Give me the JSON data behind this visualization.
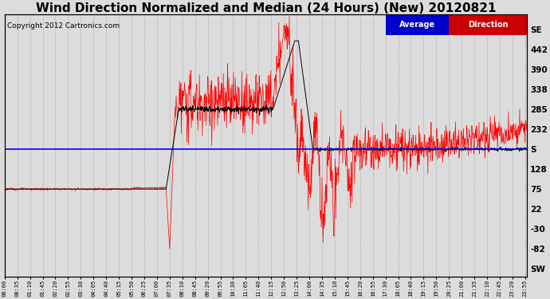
{
  "title": "Wind Direction Normalized and Median (24 Hours) (New) 20120821",
  "copyright": "Copyright 2012 Cartronics.com",
  "legend_label1": "Average",
  "legend_label2": "Direction",
  "legend_bg1": "#0000CC",
  "legend_bg2": "#CC0000",
  "legend_fg": "#FFFFFF",
  "ytick_labels": [
    "SE",
    "442",
    "390",
    "338",
    "285",
    "232",
    "S",
    "128",
    "75",
    "22",
    "-30",
    "-82",
    "SW"
  ],
  "ytick_values": [
    494,
    442,
    390,
    338,
    285,
    232,
    180,
    128,
    75,
    22,
    -30,
    -82,
    -134
  ],
  "ymin": -155,
  "ymax": 535,
  "hline_blue": 180,
  "bg_color": "#DCDCDC",
  "plot_bg": "#DCDCDC",
  "grid_color": "#AAAAAA",
  "title_fontsize": 11,
  "copy_fontsize": 6.5
}
